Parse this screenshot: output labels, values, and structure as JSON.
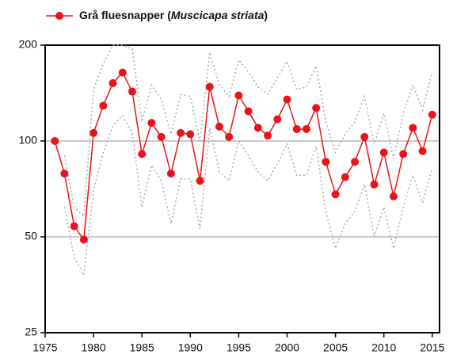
{
  "chart_data": {
    "type": "line",
    "x": [
      1976,
      1977,
      1978,
      1979,
      1980,
      1981,
      1982,
      1983,
      1984,
      1985,
      1986,
      1987,
      1988,
      1989,
      1990,
      1991,
      1992,
      1993,
      1994,
      1995,
      1996,
      1997,
      1998,
      1999,
      2000,
      2001,
      2002,
      2003,
      2004,
      2005,
      2006,
      2007,
      2008,
      2009,
      2010,
      2011,
      2012,
      2013,
      2014,
      2015
    ],
    "series": [
      {
        "name": "Grå fluesnapper (Muscicapa striata)",
        "color": "#e8141b",
        "values": [
          100,
          79,
          54,
          49,
          106,
          129,
          152,
          164,
          143,
          91,
          114,
          103,
          79,
          106,
          105,
          75,
          148,
          111,
          103,
          139,
          124,
          110,
          104,
          117,
          135,
          109,
          109,
          127,
          86,
          68,
          77,
          86,
          103,
          73,
          92,
          67,
          91,
          110,
          93,
          121
        ]
      },
      {
        "color": "#aaaaaa",
        "dotted": true,
        "values": [
          null,
          90,
          62,
          58,
          145,
          175,
          200,
          200,
          195,
          115,
          150,
          135,
          105,
          140,
          138,
          100,
          190,
          150,
          138,
          180,
          165,
          148,
          140,
          158,
          178,
          145,
          148,
          172,
          115,
          92,
          105,
          115,
          138,
          98,
          122,
          88,
          122,
          150,
          125,
          165
        ]
      },
      {
        "color": "#aaaaaa",
        "dotted": true,
        "values": [
          null,
          62,
          43,
          38,
          70,
          92,
          112,
          120,
          106,
          62,
          84,
          75,
          55,
          76,
          76,
          53,
          110,
          80,
          75,
          100,
          90,
          80,
          75,
          85,
          98,
          78,
          78,
          96,
          60,
          46,
          55,
          60,
          73,
          50,
          62,
          46,
          62,
          78,
          64,
          82
        ]
      }
    ],
    "xlim": [
      1975,
      2015.75
    ],
    "xticks": [
      1975,
      1980,
      1985,
      1990,
      1995,
      2000,
      2005,
      2010,
      2015
    ],
    "ylim": [
      25,
      200
    ],
    "yticks": [
      25,
      50,
      100,
      200
    ],
    "log_y": true,
    "grid": true
  }
}
